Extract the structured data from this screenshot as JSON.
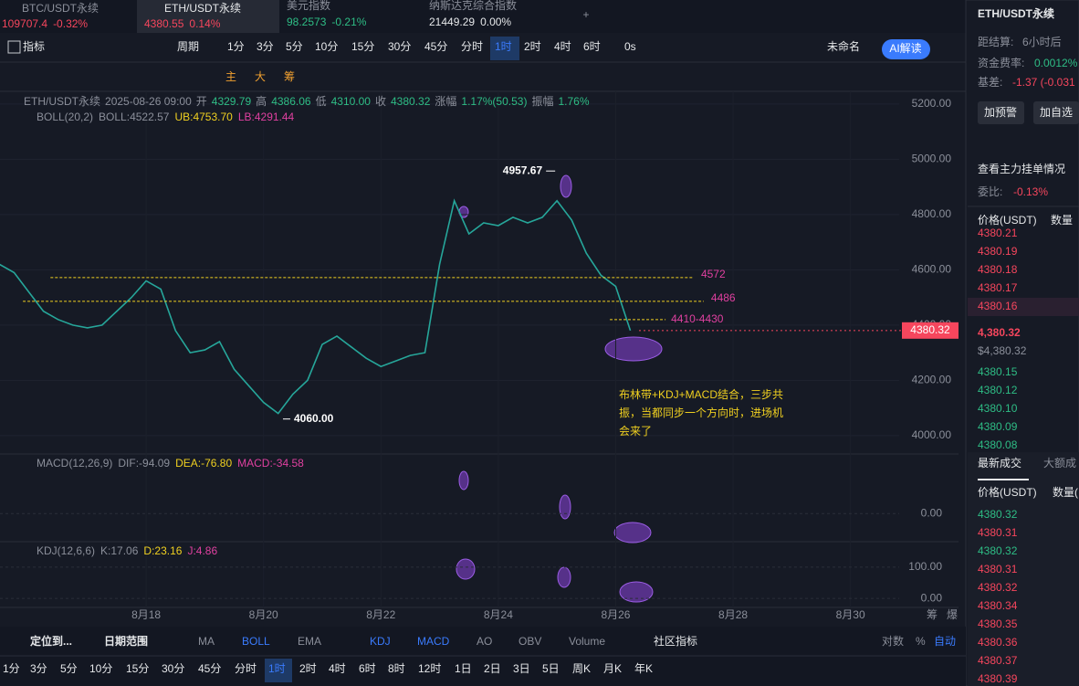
{
  "tabs": [
    {
      "name": "BTC/USDT永续",
      "price": "109707.4",
      "change": "-0.32%"
    },
    {
      "name": "ETH/USDT永续",
      "price": "4380.55",
      "change": "0.14%"
    },
    {
      "name": "美元指数",
      "price": "98.2573",
      "change": "-0.21%"
    },
    {
      "name": "纳斯达克综合指数",
      "price": "21449.29",
      "change": "0.00%"
    }
  ],
  "toolbar": {
    "indicator": "指标",
    "period": "周期",
    "periods": [
      "1分",
      "3分",
      "5分",
      "10分",
      "15分",
      "30分",
      "45分",
      "分时",
      "1时",
      "2时",
      "4时",
      "6时"
    ],
    "active": 8,
    "countdown": "0s",
    "layout": "未命名",
    "ai": "AI解读"
  },
  "drawing_tools": [
    "主",
    "大",
    "筹"
  ],
  "chart_data": {
    "type": "line",
    "info": [
      {
        "text": "ETH/USDT永续",
        "color": "#8b8f9a"
      },
      {
        "text": "2025-08-26 09:00",
        "color": "#8b8f9a"
      },
      {
        "text": "开",
        "color": "#8b8f9a"
      },
      {
        "text": "4329.79",
        "color": "#2ebd85"
      },
      {
        "text": "高",
        "color": "#8b8f9a"
      },
      {
        "text": "4386.06",
        "color": "#2ebd85"
      },
      {
        "text": "低",
        "color": "#8b8f9a"
      },
      {
        "text": "4310.00",
        "color": "#2ebd85"
      },
      {
        "text": "收",
        "color": "#8b8f9a"
      },
      {
        "text": "4380.32",
        "color": "#2ebd85"
      },
      {
        "text": "涨幅",
        "color": "#8b8f9a"
      },
      {
        "text": "1.17%(50.53)",
        "color": "#2ebd85"
      },
      {
        "text": "振幅",
        "color": "#8b8f9a"
      },
      {
        "text": "1.76%",
        "color": "#2ebd85"
      }
    ],
    "boll": [
      {
        "text": "BOLL(20,2)",
        "color": "#8b8f9a"
      },
      {
        "text": "BOLL:4522.57",
        "color": "#8b8f9a"
      },
      {
        "text": "UB:4753.70",
        "color": "#f0d020"
      },
      {
        "text": "LB:4291.44",
        "color": "#e040a0"
      }
    ],
    "x": [
      15.5,
      15.75,
      16,
      16.25,
      16.5,
      16.75,
      17,
      17.25,
      17.5,
      17.75,
      18,
      18.25,
      18.5,
      18.75,
      19,
      19.25,
      19.5,
      19.75,
      20,
      20.25,
      20.5,
      20.75,
      21,
      21.25,
      21.5,
      21.75,
      22,
      22.25,
      22.5,
      22.75,
      23,
      23.25,
      23.5,
      23.75,
      24,
      24.25,
      24.5,
      24.75,
      25,
      25.25,
      25.5,
      25.75,
      26,
      26.25
    ],
    "series": [
      {
        "name": "ETH/USDT永续",
        "color": "#26a69a",
        "values": [
          4620,
          4590,
          4520,
          4450,
          4420,
          4400,
          4390,
          4400,
          4450,
          4500,
          4560,
          4530,
          4380,
          4300,
          4310,
          4340,
          4240,
          4180,
          4120,
          4080,
          4150,
          4200,
          4330,
          4360,
          4320,
          4280,
          4250,
          4270,
          4290,
          4300,
          4620,
          4850,
          4730,
          4770,
          4760,
          4790,
          4770,
          4790,
          4850,
          4780,
          4660,
          4580,
          4540,
          4380
        ]
      }
    ],
    "xlim": [
      15.51,
      30.83
    ],
    "xticks": [
      {
        "value": 18,
        "label": "8月18"
      },
      {
        "value": 20,
        "label": "8月20"
      },
      {
        "value": 22,
        "label": "8月22"
      },
      {
        "value": 24,
        "label": "8月24"
      },
      {
        "value": 26,
        "label": "8月26"
      },
      {
        "value": 28,
        "label": "8月28"
      },
      {
        "value": 30,
        "label": "8月30"
      }
    ],
    "ylim": [
      3940,
      5246
    ],
    "yticks": [
      {
        "value": 4000,
        "label": "4000.00"
      },
      {
        "value": 4200,
        "label": "4200.00"
      },
      {
        "value": 4400,
        "label": "4400.00"
      },
      {
        "value": 4600,
        "label": "4600.00"
      },
      {
        "value": 4800,
        "label": "4800.00"
      },
      {
        "value": 5000,
        "label": "5000.00"
      },
      {
        "value": 5200,
        "label": "5200.00"
      }
    ],
    "last_price": {
      "value": 4380.32,
      "label": "4380.32"
    },
    "high_mark": {
      "x": 25.0,
      "value": 4957.67,
      "label": "4957.67"
    },
    "low_mark": {
      "x": 20.3,
      "value": 4060,
      "label": "4060.00"
    },
    "levels": [
      {
        "value": 4572,
        "from": 16.37,
        "to": 27.33
      },
      {
        "value": 4486,
        "from": 15.9,
        "to": 27.5
      }
    ],
    "range_level": {
      "label": "4410-4430",
      "low": 4410,
      "high": 4430,
      "from": 25.9,
      "to": 26.85
    },
    "note": [
      "布林带+KDJ+MACD结合，三步共",
      "振，当都同步一个方向时，进场机",
      "会来了"
    ],
    "macd": {
      "legend": [
        {
          "text": "MACD(12,26,9)",
          "color": "#8b8f9a"
        },
        {
          "text": "DIF:-94.09",
          "color": "#8b8f9a"
        },
        {
          "text": "DEA:-76.80",
          "color": "#f0d020"
        },
        {
          "text": "MACD:-34.58",
          "color": "#e040a0"
        }
      ],
      "ylim": [
        -40,
        90
      ],
      "yticks": [
        {
          "value": 0,
          "label": "0.00"
        }
      ]
    },
    "kdj": {
      "legend": [
        {
          "text": "KDJ(12,6,6)",
          "color": "#8b8f9a"
        },
        {
          "text": "K:17.06",
          "color": "#8b8f9a"
        },
        {
          "text": "D:23.16",
          "color": "#f0d020"
        },
        {
          "text": "J:4.86",
          "color": "#e040a0"
        }
      ],
      "ylim": [
        -29,
        173
      ],
      "yticks": [
        {
          "value": 100,
          "label": "100.00"
        },
        {
          "value": 0,
          "label": "0.00"
        }
      ]
    },
    "axis_extra": [
      "筹",
      "爆"
    ]
  },
  "sidebar": {
    "symbol": "ETH/USDT永续",
    "settle_label": "距结算:",
    "settle": "6小时后",
    "funding_label": "资金费率:",
    "funding": "0.0012%",
    "basis_label": "基差:",
    "basis": "-1.37 (-0.031",
    "alert": "加预警",
    "watch": "加自选",
    "depth_link": "查看主力挂单情况",
    "ratio_label": "委比:",
    "ratio": "-0.13%",
    "price_head": "价格(USDT)",
    "qty_head": "数量",
    "asks": [
      "4380.21",
      "4380.19",
      "4380.18",
      "4380.17",
      "4380.16"
    ],
    "last": "4,380.32",
    "last_usd": "$4,380.32",
    "bids": [
      "4380.15",
      "4380.12",
      "4380.10",
      "4380.09",
      "4380.08"
    ],
    "trades_tab": "最新成交",
    "big_tab": "大额成",
    "trade_price_head": "价格(USDT)",
    "trade_qty_head": "数量(",
    "trades": [
      {
        "price": "4380.32",
        "side": "buy"
      },
      {
        "price": "4380.31",
        "side": "sell"
      },
      {
        "price": "4380.32",
        "side": "buy"
      },
      {
        "price": "4380.31",
        "side": "sell"
      },
      {
        "price": "4380.32",
        "side": "sell"
      },
      {
        "price": "4380.34",
        "side": "sell"
      },
      {
        "price": "4380.35",
        "side": "sell"
      },
      {
        "price": "4380.36",
        "side": "sell"
      },
      {
        "price": "4380.37",
        "side": "sell"
      },
      {
        "price": "4380.39",
        "side": "sell"
      }
    ]
  },
  "bottom": {
    "locate": "定位到...",
    "date_range": "日期范围",
    "indicators": [
      {
        "text": "MA",
        "active": false
      },
      {
        "text": "BOLL",
        "active": true
      },
      {
        "text": "EMA",
        "active": false
      },
      {
        "text": "KDJ",
        "active": true
      },
      {
        "text": "MACD",
        "active": true
      },
      {
        "text": "AO",
        "active": false
      },
      {
        "text": "OBV",
        "active": false
      },
      {
        "text": "Volume",
        "active": false
      }
    ],
    "community": "社区指标",
    "log": "对数",
    "percent": "%",
    "auto": "自动",
    "periods": [
      "1分",
      "3分",
      "5分",
      "10分",
      "15分",
      "30分",
      "45分",
      "分时",
      "1时",
      "2时",
      "4时",
      "6时",
      "8时",
      "12时",
      "1日",
      "2日",
      "3日",
      "5日",
      "周K",
      "月K",
      "年K"
    ],
    "active": 8
  }
}
